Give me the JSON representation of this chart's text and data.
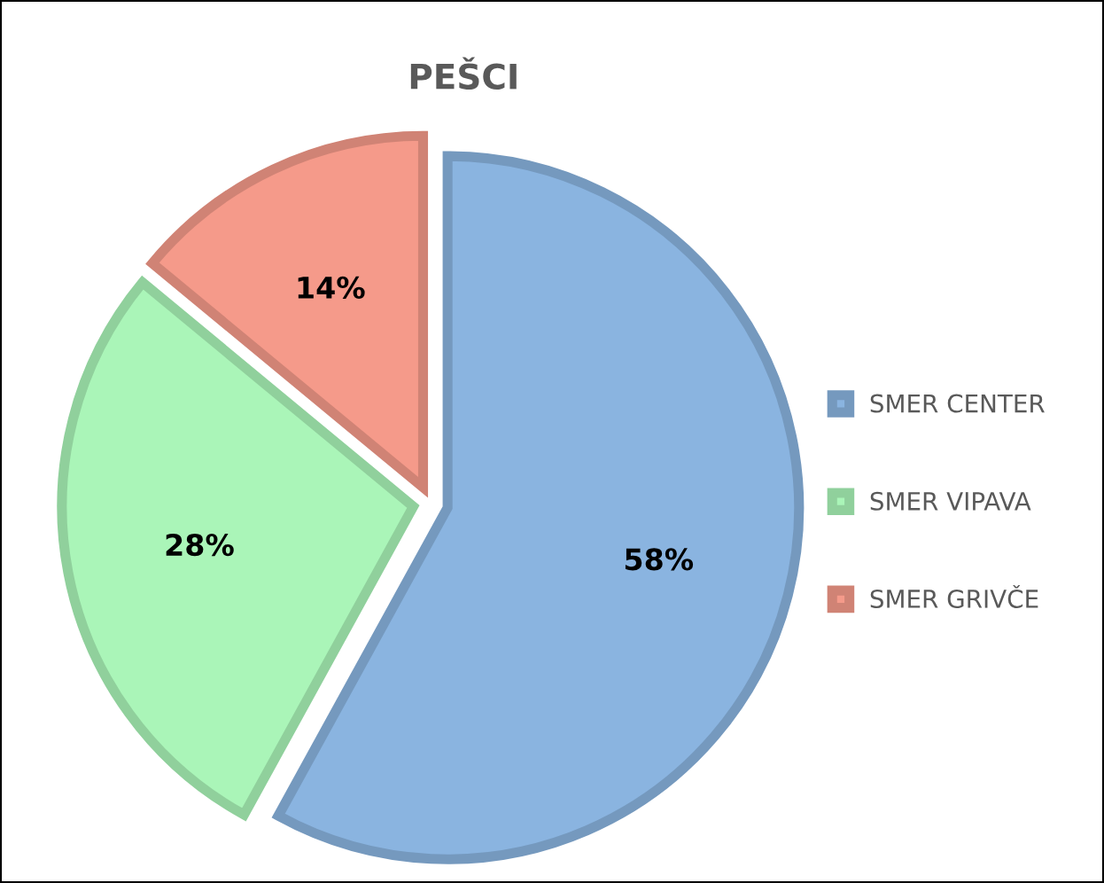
{
  "chart_data": {
    "type": "pie",
    "title": "PEŠCI",
    "categories": [
      "SMER CENTER",
      "SMER VIPAVA",
      "SMER GRIVČE"
    ],
    "values": [
      58,
      28,
      14
    ],
    "colors": [
      "#8ab4e0",
      "#aaf5b8",
      "#f59a8a"
    ],
    "value_labels": [
      "58%",
      "28%",
      "14%"
    ],
    "legend": "right"
  }
}
